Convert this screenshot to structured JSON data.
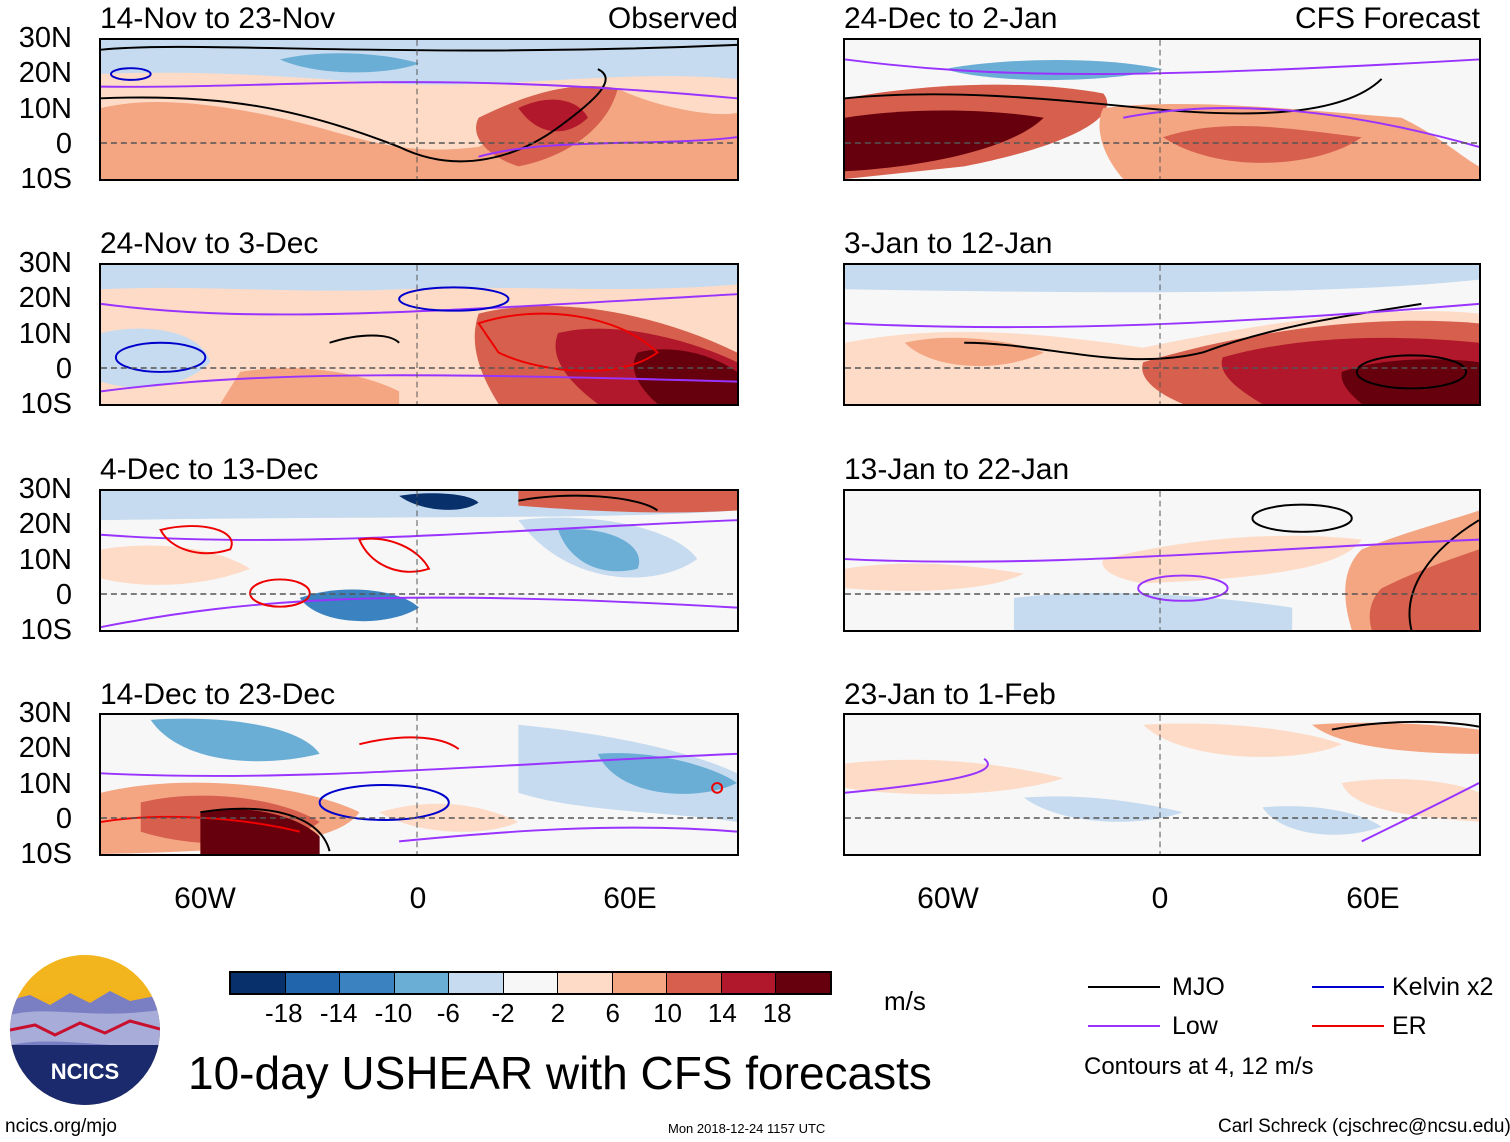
{
  "figure": {
    "title": "10-day USHEAR with CFS forecasts",
    "website": "ncics.org/mjo",
    "timestamp": "Mon 2018-12-24 1157 UTC",
    "author": "Carl Schreck (cjschrec@ncsu.edu)"
  },
  "logo": {
    "text": "NCICS"
  },
  "columns": [
    {
      "label": "Observed"
    },
    {
      "label": "CFS Forecast"
    }
  ],
  "panels": [
    {
      "title": "14-Nov to 23-Nov"
    },
    {
      "title": "24-Dec to 2-Jan"
    },
    {
      "title": "24-Nov to 3-Dec"
    },
    {
      "title": "3-Jan to 12-Jan"
    },
    {
      "title": "4-Dec to 13-Dec"
    },
    {
      "title": "13-Jan to 22-Jan"
    },
    {
      "title": "14-Dec to 23-Dec"
    },
    {
      "title": "23-Jan to 1-Feb"
    }
  ],
  "axes": {
    "lat_labels": [
      "30N",
      "20N",
      "10N",
      "0",
      "10S"
    ],
    "lon_labels": [
      "60W",
      "0",
      "60E"
    ]
  },
  "colorbar": {
    "unit": "m/s",
    "labels": [
      "-18",
      "-14",
      "-10",
      "-6",
      "-2",
      "2",
      "6",
      "10",
      "14",
      "18"
    ],
    "colors": [
      "#08306b",
      "#2166ac",
      "#3a82c0",
      "#6aaed6",
      "#c6dbef",
      "#f7f7f7",
      "#fddbc7",
      "#f4a582",
      "#d6604d",
      "#b2182b",
      "#67000d"
    ]
  },
  "legend": {
    "items": [
      {
        "label": "MJO",
        "color": "#000000"
      },
      {
        "label": "Kelvin x2",
        "color": "#0000cc"
      },
      {
        "label": "Low",
        "color": "#9933ff"
      },
      {
        "label": "ER",
        "color": "#ee0000"
      }
    ],
    "note": "Contours at 4, 12 m/s"
  },
  "chart_data": {
    "type": "heatmap",
    "variable": "10-day USHEAR anomaly",
    "unit": "m/s",
    "lon_range": [
      -90,
      90
    ],
    "lat_range": [
      -10,
      30
    ],
    "contour_levels": [
      4,
      12
    ],
    "note": "Filled shading shows wind shear anomalies; contours show MJO, Kelvin x2, Low, ER filtered components"
  }
}
